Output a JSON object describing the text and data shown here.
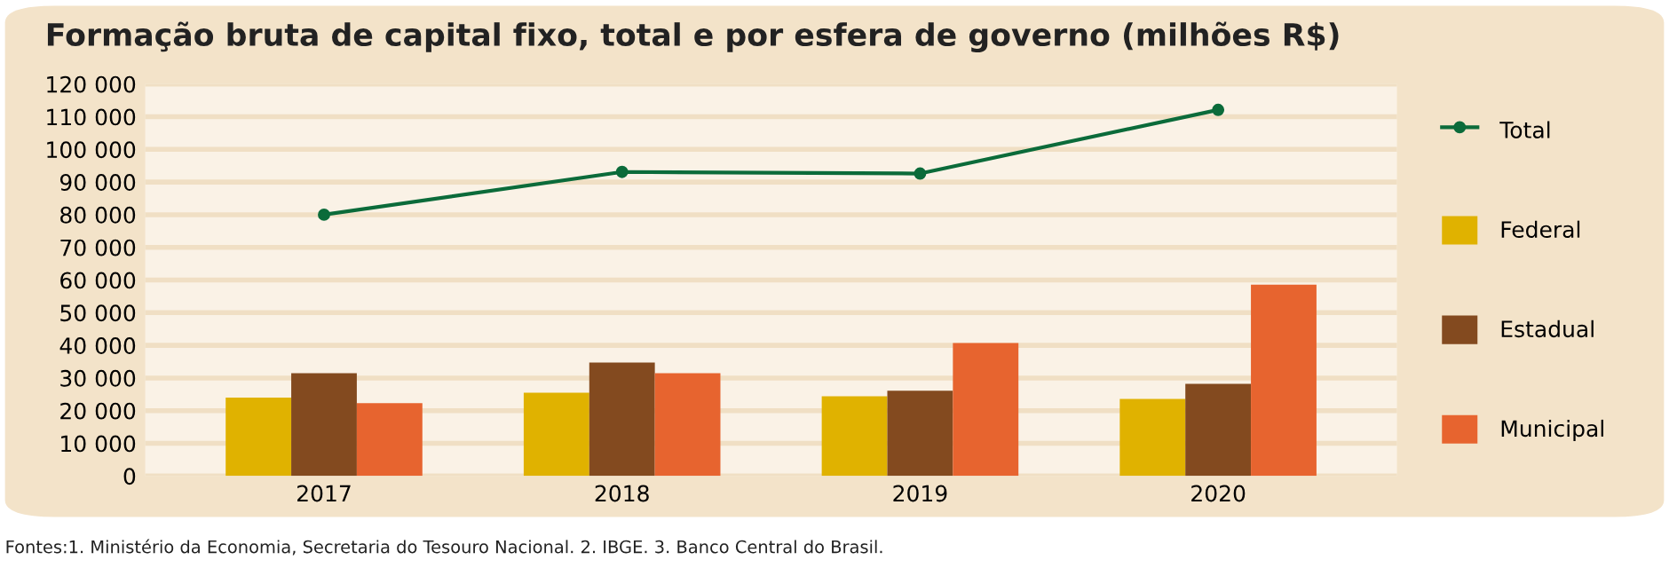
{
  "chart_data": {
    "type": "bar",
    "title": "Formação bruta de capital fixo, total e por esfera de governo (milhões R$)",
    "categories": [
      "2017",
      "2018",
      "2019",
      "2020"
    ],
    "series": [
      {
        "name": "Total",
        "type": "line",
        "color": "#0b6b3a",
        "marker": "circle",
        "line_style": "solid",
        "values": [
          80000,
          93100,
          92600,
          112100
        ]
      },
      {
        "name": "Federal",
        "color": "#e0b200",
        "values": [
          24000,
          25500,
          24400,
          23600
        ]
      },
      {
        "name": "Estadual",
        "color": "#834a1f",
        "values": [
          31500,
          34700,
          26100,
          28200
        ]
      },
      {
        "name": "Municipal",
        "color": "#e7642f",
        "values": [
          22300,
          31500,
          40700,
          58600
        ]
      }
    ],
    "ylim": [
      0,
      120000
    ],
    "yticks": [
      {
        "value": 0,
        "label": "0"
      },
      {
        "value": 10000,
        "label": "10 000"
      },
      {
        "value": 20000,
        "label": "20 000"
      },
      {
        "value": 30000,
        "label": "30 000"
      },
      {
        "value": 40000,
        "label": "40 000"
      },
      {
        "value": 50000,
        "label": "50 000"
      },
      {
        "value": 60000,
        "label": "60 000"
      },
      {
        "value": 70000,
        "label": "70 000"
      },
      {
        "value": 80000,
        "label": "80 000"
      },
      {
        "value": 90000,
        "label": "90 000"
      },
      {
        "value": 100000,
        "label": "100 000"
      },
      {
        "value": 110000,
        "label": "110 000"
      },
      {
        "value": 120000,
        "label": "120 000"
      }
    ],
    "grid": "y",
    "legend": "right",
    "annotations": [
      "Fontes:1. Ministério da Economia, Secretaria do Tesouro Nacional. 2. IBGE. 3. Banco Central do Brasil."
    ]
  }
}
